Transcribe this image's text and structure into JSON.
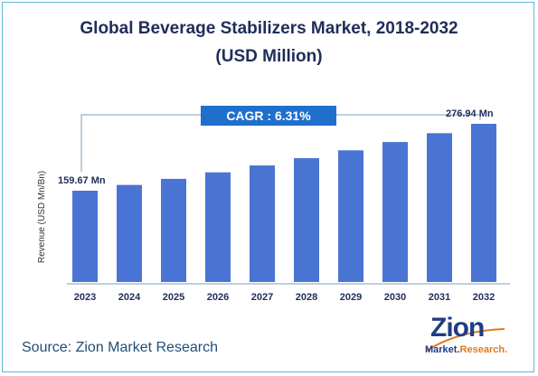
{
  "header": {
    "title_line1": "Global Beverage Stabilizers Market, 2018-2032",
    "title_line2": "(USD Million)"
  },
  "chart_data": {
    "type": "bar",
    "categories": [
      "2023",
      "2024",
      "2025",
      "2026",
      "2027",
      "2028",
      "2029",
      "2030",
      "2031",
      "2032"
    ],
    "values": [
      159.67,
      169.75,
      180.46,
      191.85,
      203.95,
      216.82,
      230.5,
      245.05,
      260.51,
      276.94
    ],
    "ylabel": "Revenue (USD Mn/Bn)",
    "annotations": {
      "first_label": "159.67 Mn",
      "last_label": "276.94 Mn",
      "cagr_label": "CAGR :  6.31%"
    },
    "colors": {
      "bar": "#4a74d4",
      "cagr_box": "#1f6fcc"
    },
    "grid": false,
    "legend": "none"
  },
  "footer": {
    "source": "Source: Zion Market Research"
  },
  "logo": {
    "word": "Zion",
    "sub_market": "Market.",
    "sub_research": "Research."
  }
}
